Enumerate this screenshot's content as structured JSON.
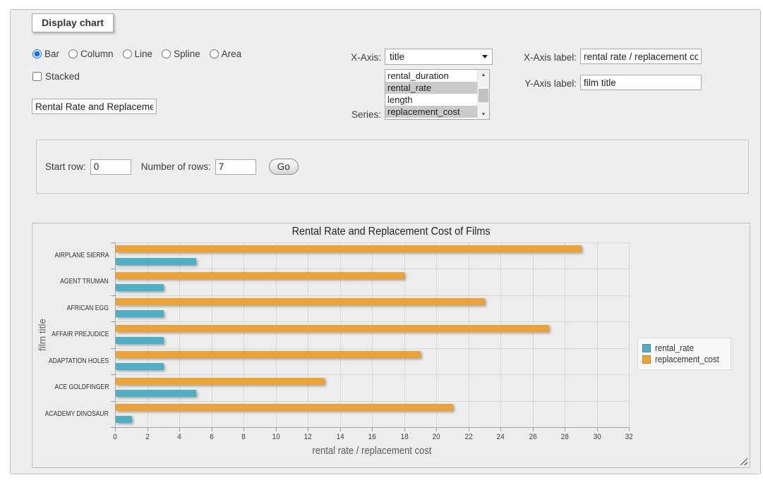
{
  "panel": {
    "title": "Display chart"
  },
  "controls": {
    "chart_types": [
      {
        "label": "Bar",
        "selected": true
      },
      {
        "label": "Column",
        "selected": false
      },
      {
        "label": "Line",
        "selected": false
      },
      {
        "label": "Spline",
        "selected": false
      },
      {
        "label": "Area",
        "selected": false
      }
    ],
    "stacked": {
      "label": "Stacked",
      "checked": false
    },
    "chart_title_value": "Rental Rate and Replacement Cost of Films",
    "x_axis_field_label": "X-Axis:",
    "x_axis_selected": "title",
    "series_label": "Series:",
    "series_options": [
      {
        "label": "rental_duration",
        "selected": false
      },
      {
        "label": "rental_rate",
        "selected": true
      },
      {
        "label": "length",
        "selected": false
      },
      {
        "label": "replacement_cost",
        "selected": true
      }
    ],
    "x_axis_label_label": "X-Axis label:",
    "x_axis_label_value": "rental rate / replacement cost",
    "y_axis_label_label": "Y-Axis label:",
    "y_axis_label_value": "film title"
  },
  "params": {
    "start_row_label": "Start row:",
    "start_row_value": "0",
    "num_rows_label": "Number of rows:",
    "num_rows_value": "7",
    "go_label": "Go"
  },
  "chart_data": {
    "type": "bar",
    "orientation": "horizontal",
    "title": "Rental Rate and Replacement Cost of Films",
    "xlabel": "rental rate / replacement cost",
    "ylabel": "film title",
    "categories": [
      "AIRPLANE SIERRA",
      "AGENT TRUMAN",
      "AFRICAN EGG",
      "AFFAIR PREJUDICE",
      "ADAPTATION HOLES",
      "ACE GOLDFINGER",
      "ACADEMY DINOSAUR"
    ],
    "series": [
      {
        "name": "rental_rate",
        "color": "#4FB0C5",
        "values": [
          4.99,
          2.99,
          2.99,
          2.99,
          2.99,
          4.99,
          0.99
        ]
      },
      {
        "name": "replacement_cost",
        "color": "#EBA338",
        "values": [
          28.99,
          17.99,
          22.99,
          26.99,
          18.99,
          12.99,
          20.99
        ]
      }
    ],
    "xlim": [
      0,
      32
    ],
    "xtick_step": 2,
    "grid": true,
    "legend_position": "right",
    "bar_order_within_band": [
      "replacement_cost",
      "rental_rate"
    ]
  }
}
